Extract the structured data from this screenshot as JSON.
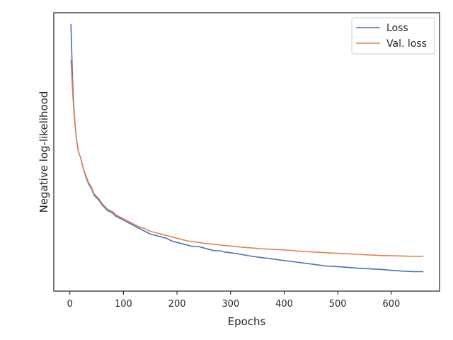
{
  "chart_data": {
    "type": "line",
    "xlabel": "Epochs",
    "ylabel": "Negative log-likelihood",
    "xlim": [
      -30,
      690
    ],
    "ylim": [
      0.0,
      1.0
    ],
    "xticks": [
      0,
      100,
      200,
      300,
      400,
      500,
      600
    ],
    "yticks": [],
    "grid": false,
    "legend_position": "top-right",
    "series": [
      {
        "name": "Loss",
        "color": "#4c72b0",
        "x": [
          2,
          5,
          8,
          12,
          16,
          20,
          25,
          30,
          35,
          40,
          45,
          50,
          55,
          60,
          65,
          70,
          75,
          80,
          85,
          90,
          95,
          100,
          110,
          120,
          130,
          140,
          150,
          160,
          170,
          180,
          190,
          200,
          210,
          220,
          230,
          240,
          250,
          260,
          270,
          280,
          290,
          300,
          320,
          340,
          360,
          380,
          400,
          420,
          440,
          460,
          480,
          500,
          520,
          540,
          560,
          580,
          600,
          620,
          640,
          660
        ],
        "values": [
          0.96,
          0.76,
          0.64,
          0.55,
          0.5,
          0.48,
          0.44,
          0.41,
          0.385,
          0.37,
          0.345,
          0.335,
          0.325,
          0.31,
          0.3,
          0.29,
          0.285,
          0.28,
          0.27,
          0.265,
          0.26,
          0.255,
          0.245,
          0.235,
          0.225,
          0.215,
          0.205,
          0.2,
          0.195,
          0.19,
          0.18,
          0.175,
          0.17,
          0.165,
          0.16,
          0.16,
          0.155,
          0.15,
          0.145,
          0.145,
          0.14,
          0.138,
          0.132,
          0.125,
          0.12,
          0.115,
          0.11,
          0.105,
          0.1,
          0.095,
          0.09,
          0.088,
          0.085,
          0.082,
          0.08,
          0.078,
          0.075,
          0.072,
          0.07,
          0.07
        ]
      },
      {
        "name": "Val. loss",
        "color": "#dd8452",
        "x": [
          2,
          5,
          8,
          12,
          16,
          20,
          25,
          30,
          35,
          40,
          45,
          50,
          55,
          60,
          65,
          70,
          75,
          80,
          85,
          90,
          95,
          100,
          110,
          120,
          130,
          140,
          150,
          160,
          170,
          180,
          190,
          200,
          210,
          220,
          230,
          240,
          250,
          260,
          270,
          280,
          290,
          300,
          320,
          340,
          360,
          380,
          400,
          420,
          440,
          460,
          480,
          500,
          520,
          540,
          560,
          580,
          600,
          620,
          640,
          660
        ],
        "values": [
          0.83,
          0.72,
          0.63,
          0.55,
          0.5,
          0.48,
          0.44,
          0.415,
          0.39,
          0.375,
          0.35,
          0.34,
          0.33,
          0.315,
          0.305,
          0.295,
          0.29,
          0.285,
          0.275,
          0.27,
          0.265,
          0.26,
          0.25,
          0.24,
          0.23,
          0.225,
          0.215,
          0.21,
          0.205,
          0.2,
          0.195,
          0.19,
          0.185,
          0.18,
          0.178,
          0.175,
          0.172,
          0.17,
          0.168,
          0.166,
          0.164,
          0.162,
          0.158,
          0.155,
          0.152,
          0.15,
          0.148,
          0.145,
          0.142,
          0.14,
          0.138,
          0.136,
          0.134,
          0.132,
          0.13,
          0.128,
          0.127,
          0.126,
          0.125,
          0.125
        ]
      }
    ]
  }
}
